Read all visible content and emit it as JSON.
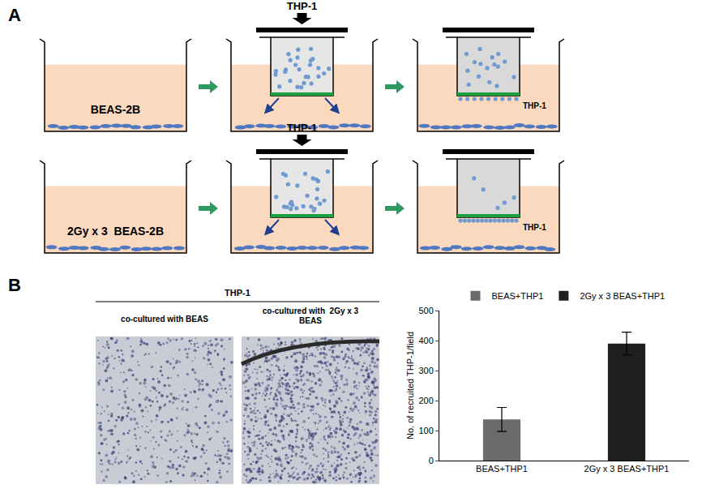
{
  "panel_a": {
    "label": "A",
    "rows": [
      {
        "well_cells": "BEAS-2B",
        "insert_cells": "THP-1",
        "migrated_cells": "THP-1"
      },
      {
        "well_cells": "2Gy x 3  BEAS-2B",
        "insert_cells": "THP-1",
        "migrated_cells": "THP-1"
      }
    ]
  },
  "panel_b": {
    "label": "B",
    "images": {
      "header": "THP-1",
      "captions": [
        "co-cultured with BEAS",
        "co-cultured with  2Gy x 3 BEAS"
      ]
    }
  },
  "chart_data": {
    "type": "bar",
    "categories": [
      "BEAS+THP1",
      "2Gy x 3 BEAS+THP1"
    ],
    "values": [
      137,
      390
    ],
    "errors": [
      40,
      38
    ],
    "colors": [
      "#6b6b6b",
      "#1f1f1f"
    ],
    "ylabel": "No. of recruited THP-1/field",
    "ylim": [
      0,
      500
    ],
    "yticks": [
      0,
      100,
      200,
      300,
      400,
      500
    ],
    "legend": "top",
    "grid": false
  }
}
